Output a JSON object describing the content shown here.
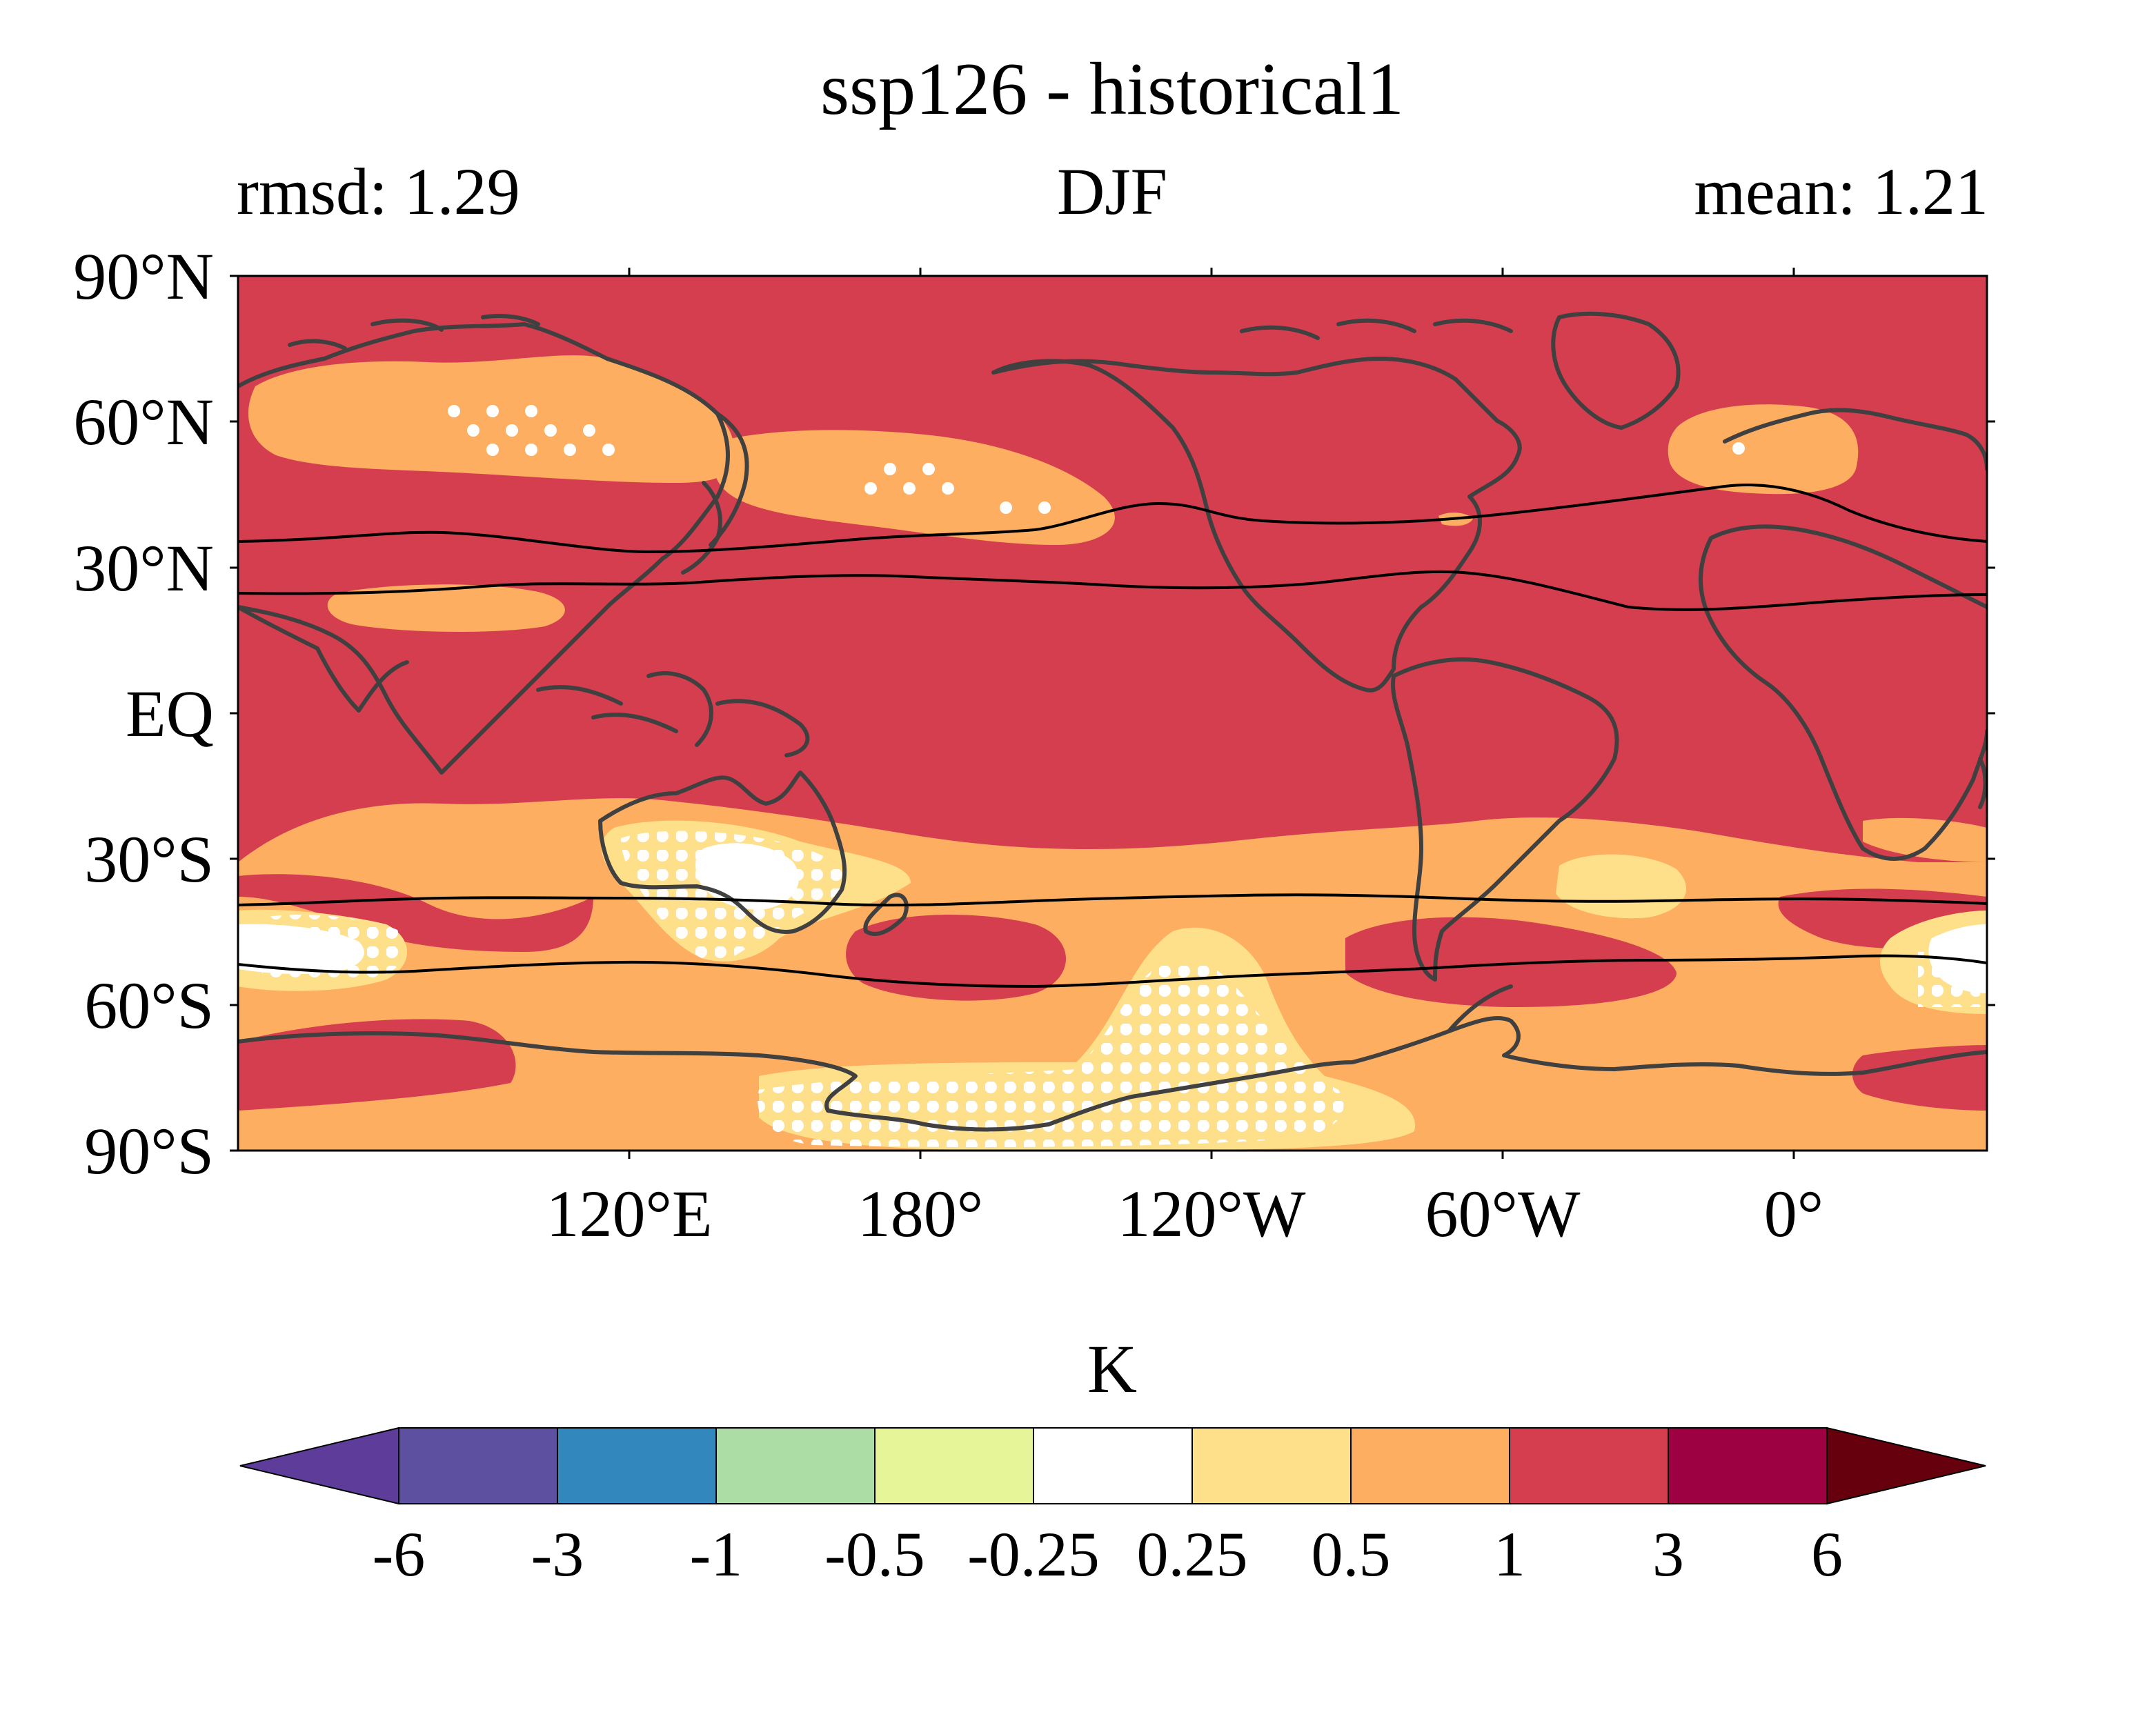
{
  "title": "ssp126 - historical1",
  "subtitle_left": "rmsd: 1.29",
  "subtitle_center": "DJF",
  "subtitle_right": "mean: 1.21",
  "map": {
    "lat_labels": [
      "90°N",
      "60°N",
      "30°N",
      "EQ",
      "30°S",
      "60°S",
      "90°S"
    ],
    "lon_labels": [
      "120°E",
      "180°",
      "120°W",
      "60°W",
      "0°"
    ]
  },
  "colorbar": {
    "unit_label": "K",
    "tick_labels": [
      "-6",
      "-3",
      "-1",
      "-0.5",
      "-0.25",
      "0.25",
      "0.5",
      "1",
      "3",
      "6"
    ],
    "colors": [
      "#5e3c99",
      "#5e50a1",
      "#3288bd",
      "#abdda4",
      "#e6f598",
      "#ffffff",
      "#fee08b",
      "#fdae61",
      "#d53e4f",
      "#9e0142",
      "#67000d"
    ]
  },
  "colors": {
    "warm_1_3": "#d53e4f",
    "warm_05_1": "#fdae61",
    "warm_025_05": "#fee08b",
    "neutral": "#ffffff",
    "coastline": "#404040",
    "contour": "#000000"
  }
}
